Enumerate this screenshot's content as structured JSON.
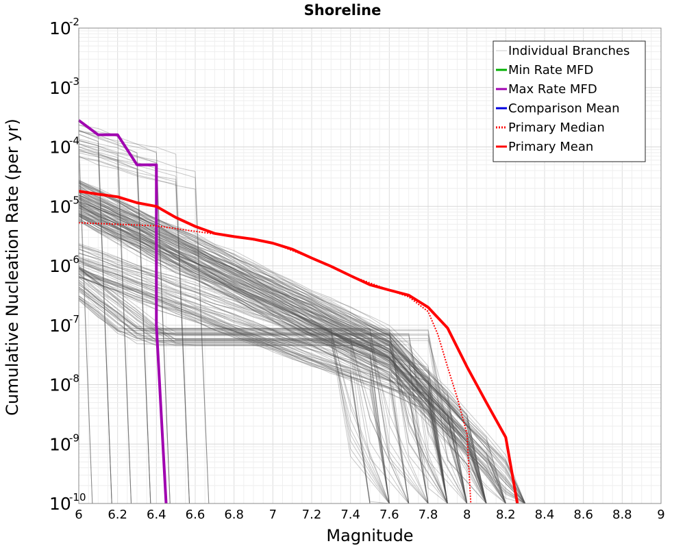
{
  "chart_data": {
    "type": "line",
    "title": "Shoreline",
    "xlabel": "Magnitude",
    "ylabel": "Cumulative Nucleation Rate (per yr)",
    "xlim": [
      6,
      9
    ],
    "ylim": [
      1e-10,
      0.01
    ],
    "y_scale": "log",
    "grid": true,
    "legend_position": "top-right",
    "x_ticks": [
      "6",
      "6.2",
      "6.4",
      "6.6",
      "6.8",
      "7",
      "7.2",
      "7.4",
      "7.6",
      "7.8",
      "8",
      "8.2",
      "8.4",
      "8.6",
      "8.8",
      "9"
    ],
    "y_ticks": [
      {
        "base": "10",
        "exp": "-2"
      },
      {
        "base": "10",
        "exp": "-3"
      },
      {
        "base": "10",
        "exp": "-4"
      },
      {
        "base": "10",
        "exp": "-5"
      },
      {
        "base": "10",
        "exp": "-6"
      },
      {
        "base": "10",
        "exp": "-7"
      },
      {
        "base": "10",
        "exp": "-8"
      },
      {
        "base": "10",
        "exp": "-9"
      },
      {
        "base": "10",
        "exp": "-10"
      }
    ],
    "legend": [
      {
        "name": "Individual Branches",
        "color": "#c8c8c8",
        "style": "solid"
      },
      {
        "name": "Min Rate MFD",
        "color": "#00b000",
        "style": "solid"
      },
      {
        "name": "Max Rate MFD",
        "color": "#a000b0",
        "style": "solid"
      },
      {
        "name": "Comparison Mean",
        "color": "#0000e0",
        "style": "solid"
      },
      {
        "name": "Primary Median",
        "color": "#ff0000",
        "style": "dotted"
      },
      {
        "name": "Primary Mean",
        "color": "#ff0000",
        "style": "solid"
      }
    ],
    "series": [
      {
        "name": "Max Rate MFD",
        "color": "#a000b0",
        "x": [
          6.0,
          6.1,
          6.2,
          6.3,
          6.4,
          6.4,
          6.45
        ],
        "values": [
          0.00028,
          0.00016,
          0.00016,
          5e-05,
          5e-05,
          1e-07,
          1e-10
        ]
      },
      {
        "name": "Primary Mean",
        "color": "#ff0000",
        "x": [
          6.0,
          6.1,
          6.2,
          6.3,
          6.4,
          6.5,
          6.6,
          6.7,
          6.8,
          6.9,
          7.0,
          7.1,
          7.2,
          7.3,
          7.4,
          7.5,
          7.6,
          7.7,
          7.8,
          7.9,
          8.0,
          8.1,
          8.2,
          8.26
        ],
        "values": [
          1.8e-05,
          1.6e-05,
          1.45e-05,
          1.15e-05,
          1e-05,
          6.5e-06,
          4.6e-06,
          3.5e-06,
          3.1e-06,
          2.8e-06,
          2.4e-06,
          1.9e-06,
          1.35e-06,
          9.8e-07,
          6.8e-07,
          4.8e-07,
          3.9e-07,
          3.2e-07,
          2e-07,
          9e-08,
          2e-08,
          5e-09,
          1.3e-09,
          1e-10
        ]
      },
      {
        "name": "Primary Median",
        "color": "#ff0000",
        "style": "dotted",
        "x": [
          6.0,
          6.2,
          6.4,
          6.6,
          6.8,
          7.0,
          7.2,
          7.4,
          7.6,
          7.7,
          7.8,
          7.85,
          7.9,
          7.95,
          8.0,
          8.02
        ],
        "values": [
          5.3e-06,
          5e-06,
          4.7e-06,
          3.8e-06,
          3.1e-06,
          2.4e-06,
          1.35e-06,
          6.8e-07,
          3.9e-07,
          3e-07,
          1.7e-07,
          7e-08,
          2e-08,
          6e-09,
          1.5e-09,
          1e-10
        ]
      }
    ]
  }
}
